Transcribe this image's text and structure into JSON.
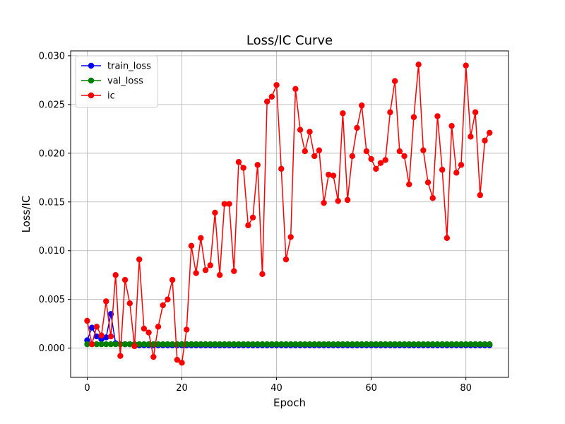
{
  "chart_data": {
    "type": "line",
    "title": "Loss/IC Curve",
    "xlabel": "Epoch",
    "ylabel": "Loss/IC",
    "xlim": [
      -3.5,
      89
    ],
    "ylim": [
      -0.003,
      0.0305
    ],
    "x_ticks": [
      0,
      20,
      40,
      60,
      80
    ],
    "y_ticks": [
      0.0,
      0.005,
      0.01,
      0.015,
      0.02,
      0.025,
      0.03
    ],
    "y_tick_labels": [
      "0.000",
      "0.005",
      "0.010",
      "0.015",
      "0.020",
      "0.025",
      "0.030"
    ],
    "grid": true,
    "legend_position": "top-left",
    "series": [
      {
        "name": "train_loss",
        "color": "#0000ff",
        "marker": "circle",
        "x": [
          0,
          1,
          2,
          3,
          4,
          5,
          6,
          7,
          8,
          9,
          10,
          11,
          12,
          13,
          14,
          15,
          16,
          17,
          18,
          19,
          20,
          21,
          22,
          23,
          24,
          25,
          26,
          27,
          28,
          29,
          30,
          31,
          32,
          33,
          34,
          35,
          36,
          37,
          38,
          39,
          40,
          41,
          42,
          43,
          44,
          45,
          46,
          47,
          48,
          49,
          50,
          51,
          52,
          53,
          54,
          55,
          56,
          57,
          58,
          59,
          60,
          61,
          62,
          63,
          64,
          65,
          66,
          67,
          68,
          69,
          70,
          71,
          72,
          73,
          74,
          75,
          76,
          77,
          78,
          79,
          80,
          81,
          82,
          83,
          84,
          85
        ],
        "values": [
          0.0008,
          0.0021,
          0.0012,
          0.0009,
          0.0011,
          0.0035,
          0.0005,
          0.0004,
          0.0004,
          0.0004,
          0.0004,
          0.0003,
          0.0003,
          0.0003,
          0.0003,
          0.0003,
          0.0003,
          0.0003,
          0.0003,
          0.0003,
          0.0003,
          0.0003,
          0.0003,
          0.0003,
          0.0003,
          0.0003,
          0.0003,
          0.0003,
          0.0003,
          0.0003,
          0.0003,
          0.0003,
          0.0003,
          0.0003,
          0.0003,
          0.0003,
          0.0003,
          0.0003,
          0.0003,
          0.0003,
          0.0003,
          0.0003,
          0.0003,
          0.0003,
          0.0003,
          0.0003,
          0.0003,
          0.0003,
          0.0003,
          0.0003,
          0.0003,
          0.0003,
          0.0003,
          0.0003,
          0.0003,
          0.0003,
          0.0003,
          0.0003,
          0.0003,
          0.0003,
          0.0003,
          0.0003,
          0.0003,
          0.0003,
          0.0003,
          0.0003,
          0.0003,
          0.0003,
          0.0003,
          0.0003,
          0.0003,
          0.0003,
          0.0003,
          0.0003,
          0.0003,
          0.0003,
          0.0003,
          0.0003,
          0.0003,
          0.0003,
          0.0003,
          0.0003,
          0.0003,
          0.0003,
          0.0003,
          0.0003
        ]
      },
      {
        "name": "val_loss",
        "color": "#008000",
        "marker": "circle",
        "x": [
          0,
          1,
          2,
          3,
          4,
          5,
          6,
          7,
          8,
          9,
          10,
          11,
          12,
          13,
          14,
          15,
          16,
          17,
          18,
          19,
          20,
          21,
          22,
          23,
          24,
          25,
          26,
          27,
          28,
          29,
          30,
          31,
          32,
          33,
          34,
          35,
          36,
          37,
          38,
          39,
          40,
          41,
          42,
          43,
          44,
          45,
          46,
          47,
          48,
          49,
          50,
          51,
          52,
          53,
          54,
          55,
          56,
          57,
          58,
          59,
          60,
          61,
          62,
          63,
          64,
          65,
          66,
          67,
          68,
          69,
          70,
          71,
          72,
          73,
          74,
          75,
          76,
          77,
          78,
          79,
          80,
          81,
          82,
          83,
          84,
          85
        ],
        "values": [
          0.0004,
          0.0004,
          0.0004,
          0.0004,
          0.0004,
          0.0004,
          0.0004,
          0.0004,
          0.0004,
          0.0004,
          0.0004,
          0.0004,
          0.0004,
          0.0004,
          0.0004,
          0.0004,
          0.0004,
          0.0004,
          0.0004,
          0.0004,
          0.0004,
          0.0004,
          0.0004,
          0.0004,
          0.0004,
          0.0004,
          0.0004,
          0.0004,
          0.0004,
          0.0004,
          0.0004,
          0.0004,
          0.0004,
          0.0004,
          0.0004,
          0.0004,
          0.0004,
          0.0004,
          0.0004,
          0.0004,
          0.0004,
          0.0004,
          0.0004,
          0.0004,
          0.0004,
          0.0004,
          0.0004,
          0.0004,
          0.0004,
          0.0004,
          0.0004,
          0.0004,
          0.0004,
          0.0004,
          0.0004,
          0.0004,
          0.0004,
          0.0004,
          0.0004,
          0.0004,
          0.0004,
          0.0004,
          0.0004,
          0.0004,
          0.0004,
          0.0004,
          0.0004,
          0.0004,
          0.0004,
          0.0004,
          0.0004,
          0.0004,
          0.0004,
          0.0004,
          0.0004,
          0.0004,
          0.0004,
          0.0004,
          0.0004,
          0.0004,
          0.0004,
          0.0004,
          0.0004,
          0.0004,
          0.0004,
          0.0004
        ]
      },
      {
        "name": "ic",
        "color": "#ff0000",
        "marker": "circle",
        "x": [
          0,
          1,
          2,
          3,
          4,
          5,
          6,
          7,
          8,
          9,
          10,
          11,
          12,
          13,
          14,
          15,
          16,
          17,
          18,
          19,
          20,
          21,
          22,
          23,
          24,
          25,
          26,
          27,
          28,
          29,
          30,
          31,
          32,
          33,
          34,
          35,
          36,
          37,
          38,
          39,
          40,
          41,
          42,
          43,
          44,
          45,
          46,
          47,
          48,
          49,
          50,
          51,
          52,
          53,
          54,
          55,
          56,
          57,
          58,
          59,
          60,
          61,
          62,
          63,
          64,
          65,
          66,
          67,
          68,
          69,
          70,
          71,
          72,
          73,
          74,
          75,
          76,
          77,
          78,
          79,
          80,
          81,
          82,
          83,
          84,
          85
        ],
        "values": [
          0.0028,
          0.0004,
          0.0022,
          0.0013,
          0.0048,
          0.0012,
          0.0075,
          -0.0008,
          0.007,
          0.0046,
          0.0002,
          0.0091,
          0.002,
          0.0016,
          -0.0009,
          0.0022,
          0.0044,
          0.005,
          0.007,
          -0.0012,
          -0.0015,
          0.0019,
          0.0105,
          0.0077,
          0.0113,
          0.008,
          0.0085,
          0.0139,
          0.0075,
          0.0148,
          0.0148,
          0.0079,
          0.0191,
          0.0185,
          0.0126,
          0.0134,
          0.0188,
          0.0076,
          0.0253,
          0.0258,
          0.027,
          0.0184,
          0.0091,
          0.0114,
          0.0266,
          0.0224,
          0.0202,
          0.0222,
          0.0197,
          0.0203,
          0.0149,
          0.0178,
          0.0177,
          0.0151,
          0.0241,
          0.0152,
          0.0197,
          0.0226,
          0.0249,
          0.0202,
          0.0194,
          0.0184,
          0.019,
          0.0193,
          0.0242,
          0.0274,
          0.0202,
          0.0197,
          0.0168,
          0.0237,
          0.0291,
          0.0203,
          0.017,
          0.0154,
          0.0238,
          0.0183,
          0.0113,
          0.0228,
          0.018,
          0.0188,
          0.029,
          0.0217,
          0.0242,
          0.0157,
          0.0213,
          0.0221
        ]
      }
    ]
  }
}
